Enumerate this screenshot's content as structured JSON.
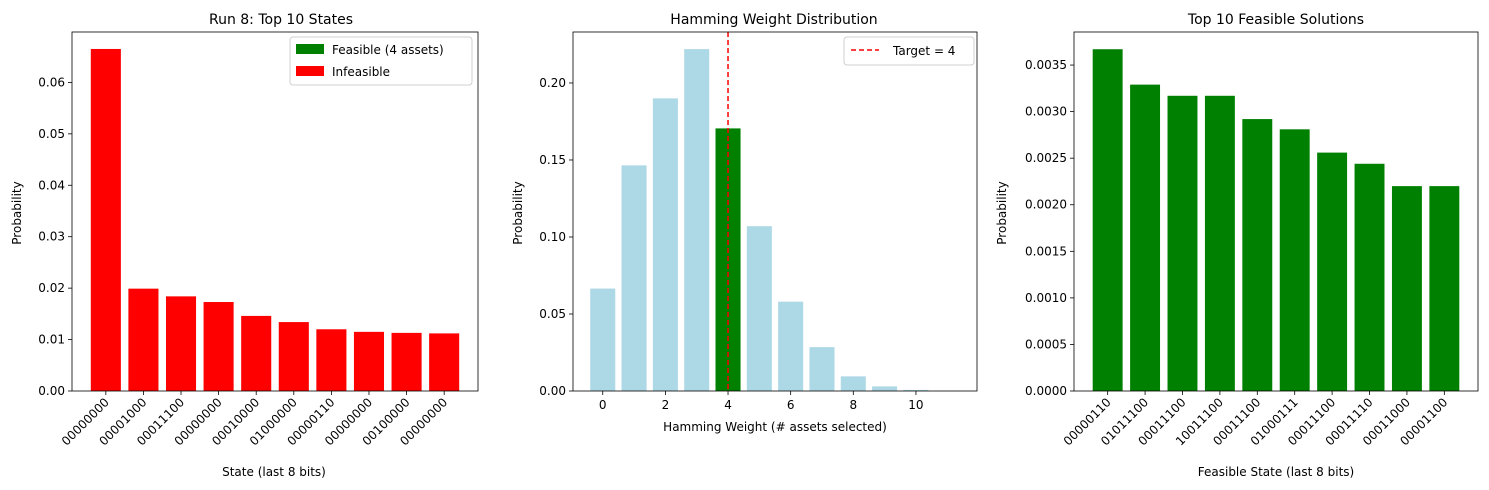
{
  "colors": {
    "feasible": "#008000",
    "infeasible": "#ff0000",
    "hamming_bar": "#add8e6",
    "target_line": "#ff0000",
    "axes": "#000000"
  },
  "chart_data": [
    {
      "type": "bar",
      "title": "Run 8: Top 10 States",
      "xlabel": "State (last 8 bits)",
      "ylabel": "Probability",
      "categories": [
        "00000000",
        "00001000",
        "00011100",
        "00000000",
        "00010000",
        "01000000",
        "00000110",
        "00000000",
        "00100000",
        "00000000"
      ],
      "values": [
        0.0665,
        0.0199,
        0.0184,
        0.0173,
        0.0146,
        0.0134,
        0.012,
        0.0115,
        0.0113,
        0.0112
      ],
      "bar_colors": [
        "infeasible",
        "infeasible",
        "infeasible",
        "infeasible",
        "infeasible",
        "infeasible",
        "infeasible",
        "infeasible",
        "infeasible",
        "infeasible"
      ],
      "ylim": [
        0,
        0.0698
      ],
      "yticks": [
        0.0,
        0.01,
        0.02,
        0.03,
        0.04,
        0.05,
        0.06
      ],
      "ytick_labels": [
        "0.00",
        "0.01",
        "0.02",
        "0.03",
        "0.04",
        "0.05",
        "0.06"
      ],
      "legend": {
        "placement": "top-right",
        "entries": [
          {
            "label": "Feasible (4 assets)",
            "color": "feasible"
          },
          {
            "label": "Infeasible",
            "color": "infeasible"
          }
        ]
      },
      "grid": false
    },
    {
      "type": "bar",
      "title": "Hamming Weight Distribution",
      "xlabel": "Hamming Weight (# assets selected)",
      "ylabel": "Probability",
      "x": [
        0,
        1,
        2,
        3,
        4,
        5,
        6,
        7,
        8,
        9,
        10,
        11
      ],
      "values": [
        0.0665,
        0.1465,
        0.19,
        0.222,
        0.1705,
        0.107,
        0.058,
        0.0285,
        0.0095,
        0.003,
        0.0007,
        0.0001
      ],
      "bar_colors": [
        "hamming_bar",
        "hamming_bar",
        "hamming_bar",
        "hamming_bar",
        "feasible",
        "hamming_bar",
        "hamming_bar",
        "hamming_bar",
        "hamming_bar",
        "hamming_bar",
        "hamming_bar",
        "hamming_bar"
      ],
      "xlim": [
        -0.95,
        11.95
      ],
      "ylim": [
        0,
        0.2331
      ],
      "xticks": [
        0,
        2,
        4,
        6,
        8,
        10
      ],
      "xtick_labels": [
        "0",
        "2",
        "4",
        "6",
        "8",
        "10"
      ],
      "yticks": [
        0.0,
        0.05,
        0.1,
        0.15,
        0.2
      ],
      "ytick_labels": [
        "0.00",
        "0.05",
        "0.10",
        "0.15",
        "0.20"
      ],
      "vline": {
        "x": 4,
        "label": "Target = 4",
        "color": "target_line",
        "style": "dashed"
      },
      "legend": {
        "placement": "top-right",
        "entries": [
          {
            "label": "Target = 4",
            "color": "target_line",
            "kind": "dashed-line"
          }
        ]
      },
      "grid": false
    },
    {
      "type": "bar",
      "title": "Top 10 Feasible Solutions",
      "xlabel": "Feasible State (last 8 bits)",
      "ylabel": "Probability",
      "categories": [
        "00000110",
        "01011100",
        "00011100",
        "10011100",
        "00011100",
        "01000111",
        "00011100",
        "00011110",
        "00011000",
        "00001100"
      ],
      "values": [
        0.00367,
        0.00329,
        0.00317,
        0.00317,
        0.00292,
        0.00281,
        0.00256,
        0.00244,
        0.0022,
        0.0022
      ],
      "bar_colors": [
        "feasible",
        "feasible",
        "feasible",
        "feasible",
        "feasible",
        "feasible",
        "feasible",
        "feasible",
        "feasible",
        "feasible"
      ],
      "ylim": [
        0,
        0.003855
      ],
      "yticks": [
        0.0,
        0.0005,
        0.001,
        0.0015,
        0.002,
        0.0025,
        0.003,
        0.0035
      ],
      "ytick_labels": [
        "0.0000",
        "0.0005",
        "0.0010",
        "0.0015",
        "0.0020",
        "0.0025",
        "0.0030",
        "0.0035"
      ],
      "grid": false
    }
  ]
}
